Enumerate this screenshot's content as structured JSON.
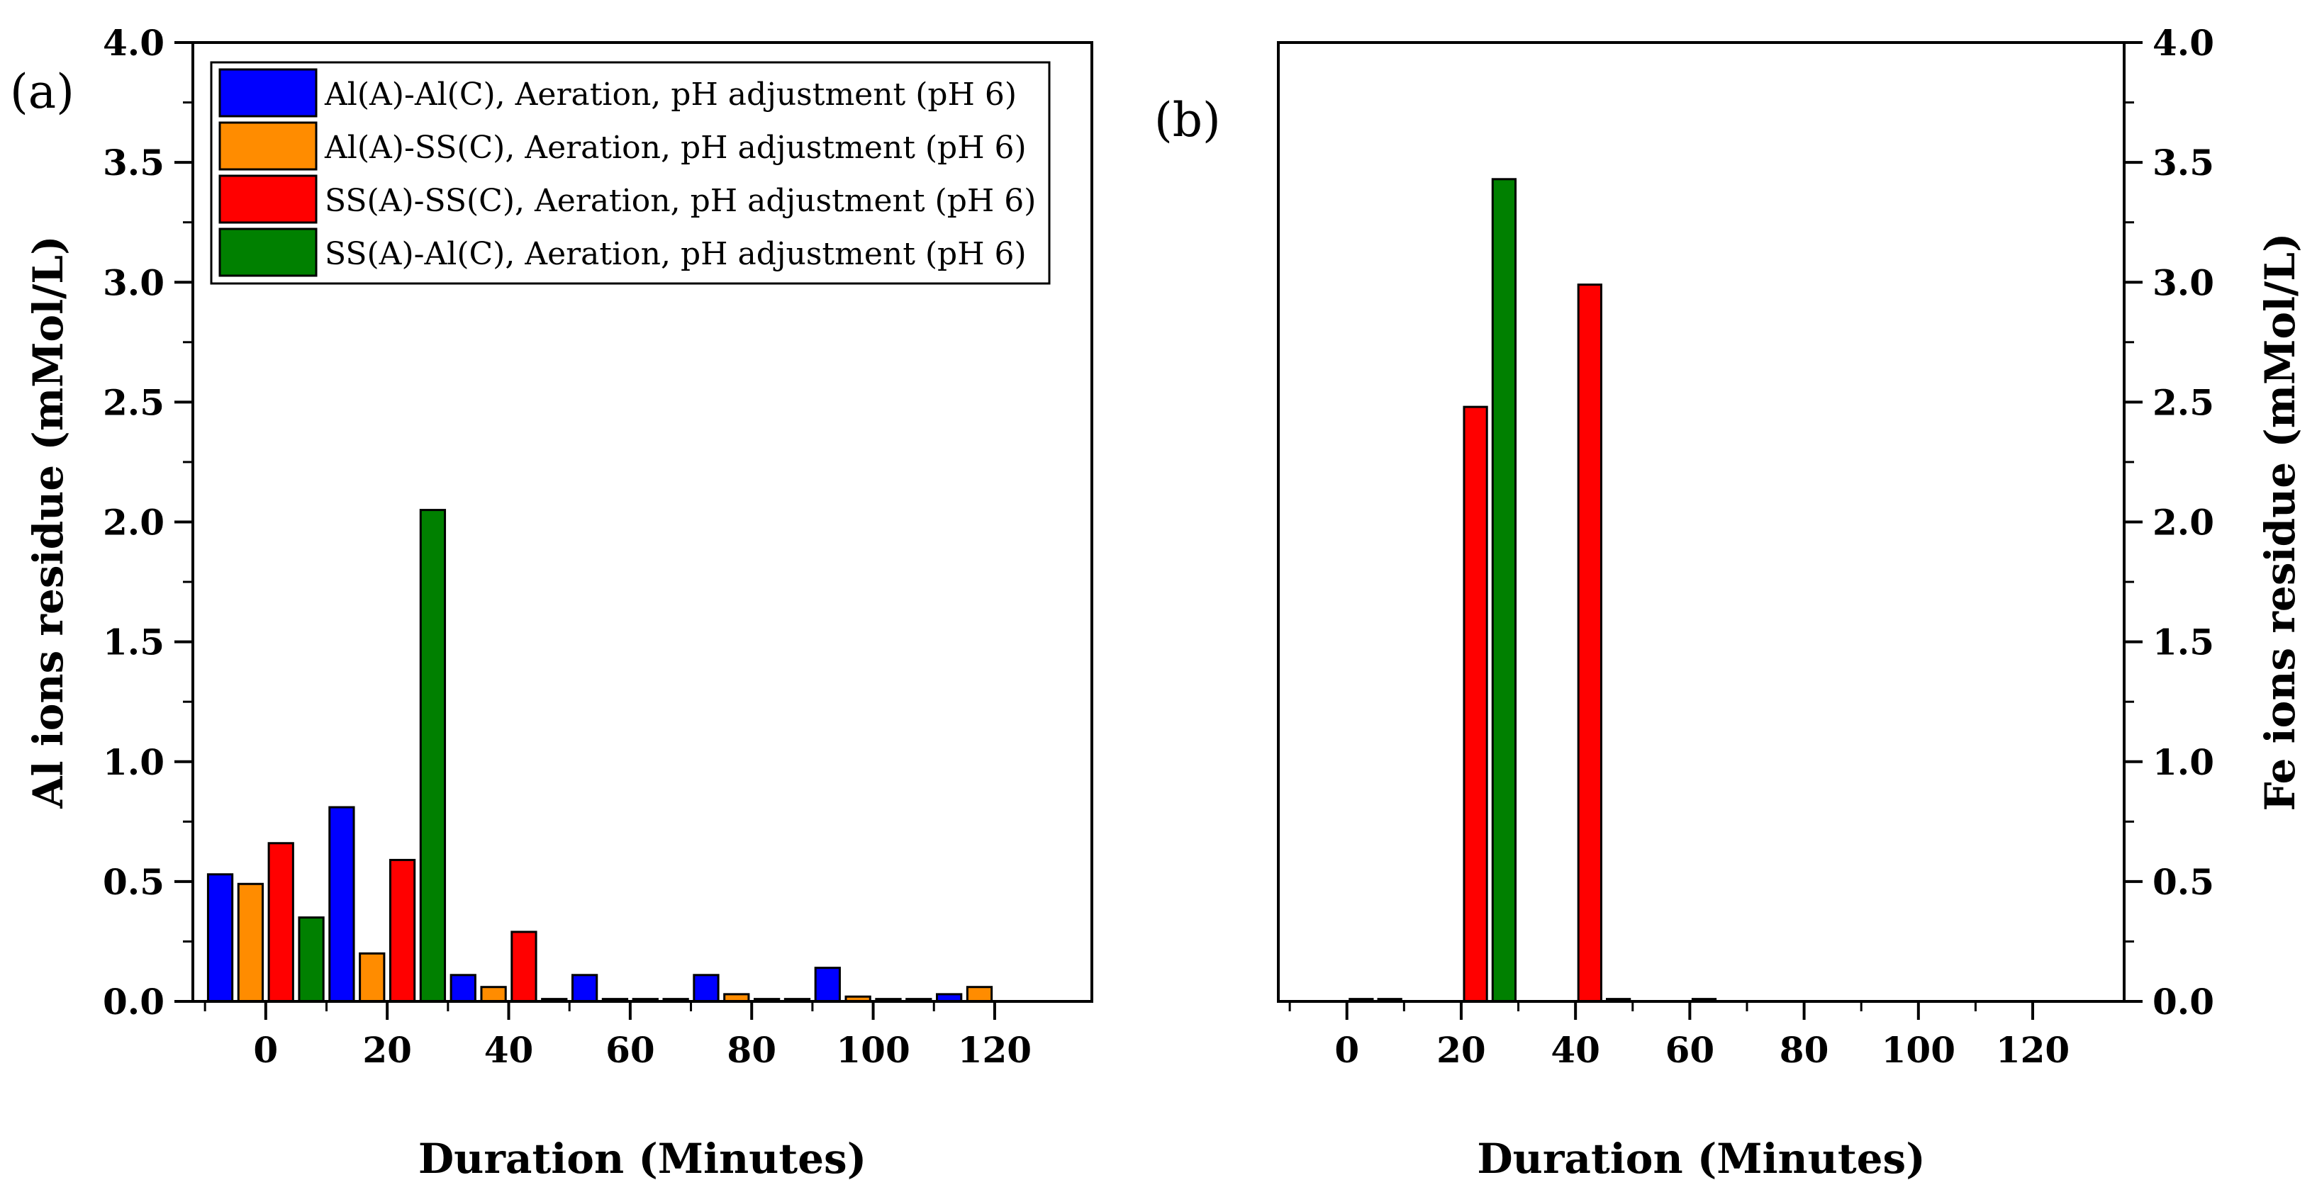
{
  "chart_data": [
    {
      "panel_label": "(a)",
      "type": "bar",
      "xlabel": "Duration (Minutes)",
      "ylabel": "Al ions residue (mMol/L)",
      "y_axis_side": "left",
      "xlim": [
        -12,
        136
      ],
      "ylim": [
        0,
        4.0
      ],
      "x_ticks": [
        0,
        20,
        40,
        60,
        80,
        100,
        120
      ],
      "x_tick_labels": [
        "0",
        "20",
        "40",
        "60",
        "80",
        "100",
        "120"
      ],
      "y_ticks": [
        0,
        0.5,
        1.0,
        1.5,
        2.0,
        2.5,
        3.0,
        3.5,
        4.0
      ],
      "y_tick_labels": [
        "0.0",
        "0.5",
        "1.0",
        "1.5",
        "2.0",
        "2.5",
        "3.0",
        "3.5",
        "4.0"
      ],
      "grid": false,
      "legend_position": "top-left",
      "categories": [
        0,
        20,
        40,
        60,
        80,
        100,
        120
      ],
      "series": [
        {
          "name": "Al(A)-Al(C), Aeration, pH adjustment (pH 6)",
          "color": "#0000ff",
          "values": [
            0.53,
            0.81,
            0.11,
            0.11,
            0.11,
            0.14,
            0.03
          ]
        },
        {
          "name": "Al(A)-SS(C), Aeration, pH adjustment (pH 6)",
          "color": "#ff8c00",
          "values": [
            0.49,
            0.2,
            0.06,
            0.01,
            0.03,
            0.02,
            0.06
          ]
        },
        {
          "name": "SS(A)-SS(C), Aeration, pH adjustment (pH 6)",
          "color": "#ff0000",
          "values": [
            0.66,
            0.59,
            0.29,
            0.01,
            0.01,
            0.01,
            0.0
          ]
        },
        {
          "name": "SS(A)-Al(C), Aeration, pH adjustment (pH 6)",
          "color": "#008000",
          "values": [
            0.35,
            2.05,
            0.01,
            0.01,
            0.01,
            0.01,
            0.0
          ]
        }
      ]
    },
    {
      "panel_label": "(b)",
      "type": "bar",
      "xlabel": "Duration (Minutes)",
      "ylabel": "Fe ions residue (mMol/L)",
      "y_axis_side": "right",
      "xlim": [
        -12,
        136
      ],
      "ylim": [
        0,
        4.0
      ],
      "x_ticks": [
        0,
        20,
        40,
        60,
        80,
        100,
        120
      ],
      "x_tick_labels": [
        "0",
        "20",
        "40",
        "60",
        "80",
        "100",
        "120"
      ],
      "y_ticks": [
        0,
        0.5,
        1.0,
        1.5,
        2.0,
        2.5,
        3.0,
        3.5,
        4.0
      ],
      "y_tick_labels": [
        "0.0",
        "0.5",
        "1.0",
        "1.5",
        "2.0",
        "2.5",
        "3.0",
        "3.5",
        "4.0"
      ],
      "grid": false,
      "categories": [
        0,
        20,
        40,
        60,
        80,
        100,
        120
      ],
      "series": [
        {
          "name": "Al(A)-Al(C), Aeration, pH adjustment (pH 6)",
          "color": "#0000ff",
          "values": [
            0.0,
            0.0,
            0.0,
            0.0,
            0.0,
            0.0,
            0.0
          ]
        },
        {
          "name": "Al(A)-SS(C), Aeration, pH adjustment (pH 6)",
          "color": "#ff8c00",
          "values": [
            0.0,
            0.0,
            0.0,
            0.0,
            0.0,
            0.0,
            0.0
          ]
        },
        {
          "name": "SS(A)-SS(C), Aeration, pH adjustment (pH 6)",
          "color": "#ff0000",
          "values": [
            0.01,
            2.48,
            2.99,
            0.01,
            0.0,
            0.0,
            0.0
          ]
        },
        {
          "name": "SS(A)-Al(C), Aeration, pH adjustment (pH 6)",
          "color": "#008000",
          "values": [
            0.01,
            3.43,
            0.01,
            0.0,
            0.0,
            0.0,
            0.0
          ]
        }
      ]
    }
  ]
}
